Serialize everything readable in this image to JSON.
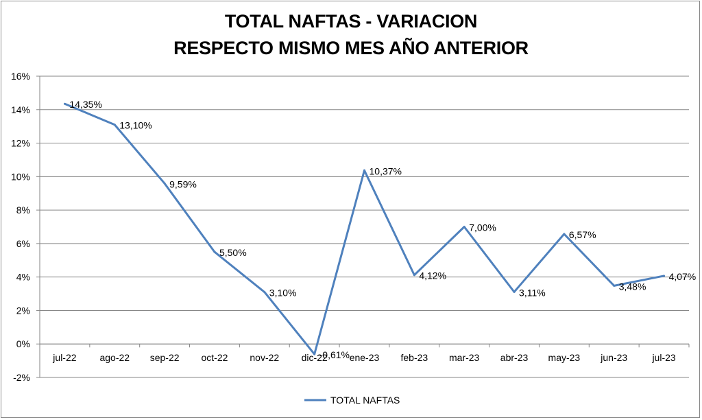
{
  "chart_data": {
    "type": "line",
    "title": [
      "TOTAL NAFTAS - VARIACION",
      "RESPECTO MISMO MES AÑO ANTERIOR"
    ],
    "xlabel": "",
    "ylabel": "",
    "categories": [
      "jul-22",
      "ago-22",
      "sep-22",
      "oct-22",
      "nov-22",
      "dic-22",
      "ene-23",
      "feb-23",
      "mar-23",
      "abr-23",
      "may-23",
      "jun-23",
      "jul-23"
    ],
    "series": [
      {
        "name": "TOTAL NAFTAS",
        "color": "#4F81BD",
        "values": [
          14.35,
          13.1,
          9.59,
          5.5,
          3.1,
          -0.61,
          10.37,
          4.12,
          7.0,
          3.11,
          6.57,
          3.48,
          4.07
        ],
        "data_labels": [
          "14,35%",
          "13,10%",
          "9,59%",
          "5,50%",
          "3,10%",
          "-0,61%",
          "10,37%",
          "4,12%",
          "7,00%",
          "3,11%",
          "6,57%",
          "3,48%",
          "4,07%"
        ]
      }
    ],
    "ylim": [
      -2,
      16
    ],
    "yticks": [
      -2,
      0,
      2,
      4,
      6,
      8,
      10,
      12,
      14,
      16
    ],
    "ytick_labels": [
      "-2%",
      "0%",
      "2%",
      "4%",
      "6%",
      "8%",
      "10%",
      "12%",
      "14%",
      "16%"
    ],
    "grid": true,
    "legend_position": "bottom"
  }
}
